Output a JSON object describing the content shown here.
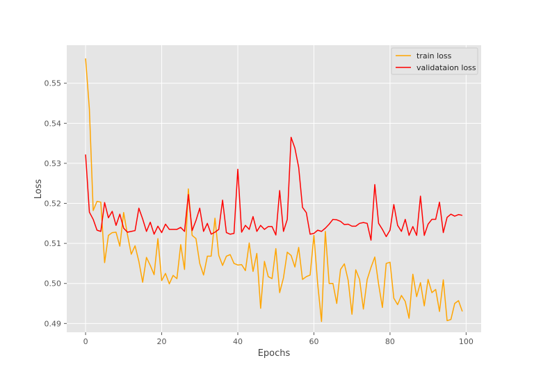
{
  "chart_data": {
    "type": "line",
    "title": "",
    "xlabel": "Epochs",
    "ylabel": "Loss",
    "xlim": [
      -4.95,
      103.95
    ],
    "ylim": [
      0.4878,
      0.5595
    ],
    "xticks": [
      0,
      20,
      40,
      60,
      80,
      100
    ],
    "xtick_labels": [
      "0",
      "20",
      "40",
      "60",
      "80",
      "100"
    ],
    "yticks": [
      0.49,
      0.5,
      0.51,
      0.52,
      0.53,
      0.54,
      0.55
    ],
    "ytick_labels": [
      "0.49",
      "0.50",
      "0.51",
      "0.52",
      "0.53",
      "0.54",
      "0.55"
    ],
    "grid": true,
    "legend_position": "top-right",
    "x": [
      0,
      1,
      2,
      3,
      4,
      5,
      6,
      7,
      8,
      9,
      10,
      11,
      12,
      13,
      14,
      15,
      16,
      17,
      18,
      19,
      20,
      21,
      22,
      23,
      24,
      25,
      26,
      27,
      28,
      29,
      30,
      31,
      32,
      33,
      34,
      35,
      36,
      37,
      38,
      39,
      40,
      41,
      42,
      43,
      44,
      45,
      46,
      47,
      48,
      49,
      50,
      51,
      52,
      53,
      54,
      55,
      56,
      57,
      58,
      59,
      60,
      61,
      62,
      63,
      64,
      65,
      66,
      67,
      68,
      69,
      70,
      71,
      72,
      73,
      74,
      75,
      76,
      77,
      78,
      79,
      80,
      81,
      82,
      83,
      84,
      85,
      86,
      87,
      88,
      89,
      90,
      91,
      92,
      93,
      94,
      95,
      96,
      97,
      98,
      99
    ],
    "series": [
      {
        "name": "train loss",
        "color": "#FFA500",
        "values": [
          0.5562,
          0.5435,
          0.5182,
          0.5205,
          0.5203,
          0.5052,
          0.512,
          0.5127,
          0.5128,
          0.5093,
          0.5177,
          0.5122,
          0.5073,
          0.5094,
          0.5055,
          0.5003,
          0.5065,
          0.5045,
          0.5022,
          0.5112,
          0.5007,
          0.5025,
          0.4999,
          0.502,
          0.5012,
          0.5097,
          0.5035,
          0.5236,
          0.512,
          0.5112,
          0.505,
          0.5021,
          0.5068,
          0.5068,
          0.5163,
          0.507,
          0.5045,
          0.5068,
          0.5072,
          0.505,
          0.5046,
          0.5047,
          0.5032,
          0.5101,
          0.503,
          0.5075,
          0.4938,
          0.5055,
          0.5017,
          0.5012,
          0.5087,
          0.4977,
          0.5014,
          0.5078,
          0.507,
          0.5041,
          0.509,
          0.501,
          0.5017,
          0.5021,
          0.512,
          0.4998,
          0.4905,
          0.513,
          0.5,
          0.5,
          0.495,
          0.5035,
          0.5049,
          0.5008,
          0.4923,
          0.5034,
          0.501,
          0.4936,
          0.501,
          0.504,
          0.5066,
          0.4998,
          0.494,
          0.505,
          0.5053,
          0.4963,
          0.4947,
          0.497,
          0.4955,
          0.4913,
          0.5023,
          0.4967,
          0.5002,
          0.4944,
          0.501,
          0.4977,
          0.4985,
          0.493,
          0.5009,
          0.4907,
          0.491,
          0.495,
          0.4957,
          0.493
        ]
      },
      {
        "name": "validataion loss",
        "color": "#FF0000",
        "values": [
          0.5322,
          0.5178,
          0.516,
          0.5133,
          0.513,
          0.5202,
          0.5164,
          0.518,
          0.5145,
          0.5173,
          0.5138,
          0.5128,
          0.513,
          0.5132,
          0.5188,
          0.5161,
          0.513,
          0.5153,
          0.5123,
          0.5143,
          0.5127,
          0.5148,
          0.5135,
          0.5135,
          0.5135,
          0.514,
          0.513,
          0.5222,
          0.5132,
          0.5157,
          0.5188,
          0.513,
          0.515,
          0.5123,
          0.5128,
          0.5135,
          0.5208,
          0.5127,
          0.5123,
          0.5125,
          0.5285,
          0.5128,
          0.5145,
          0.5135,
          0.5167,
          0.513,
          0.5145,
          0.5135,
          0.5142,
          0.5142,
          0.5121,
          0.5232,
          0.513,
          0.516,
          0.5365,
          0.5338,
          0.529,
          0.519,
          0.5177,
          0.5123,
          0.5125,
          0.5133,
          0.513,
          0.5138,
          0.5148,
          0.516,
          0.5159,
          0.5155,
          0.5147,
          0.5148,
          0.5143,
          0.5143,
          0.515,
          0.5152,
          0.515,
          0.5108,
          0.5247,
          0.515,
          0.5135,
          0.5117,
          0.5133,
          0.5197,
          0.5145,
          0.513,
          0.516,
          0.512,
          0.5142,
          0.512,
          0.5218,
          0.512,
          0.5148,
          0.516,
          0.516,
          0.5203,
          0.5127,
          0.5165,
          0.5173,
          0.5168,
          0.5172,
          0.517
        ]
      }
    ]
  }
}
